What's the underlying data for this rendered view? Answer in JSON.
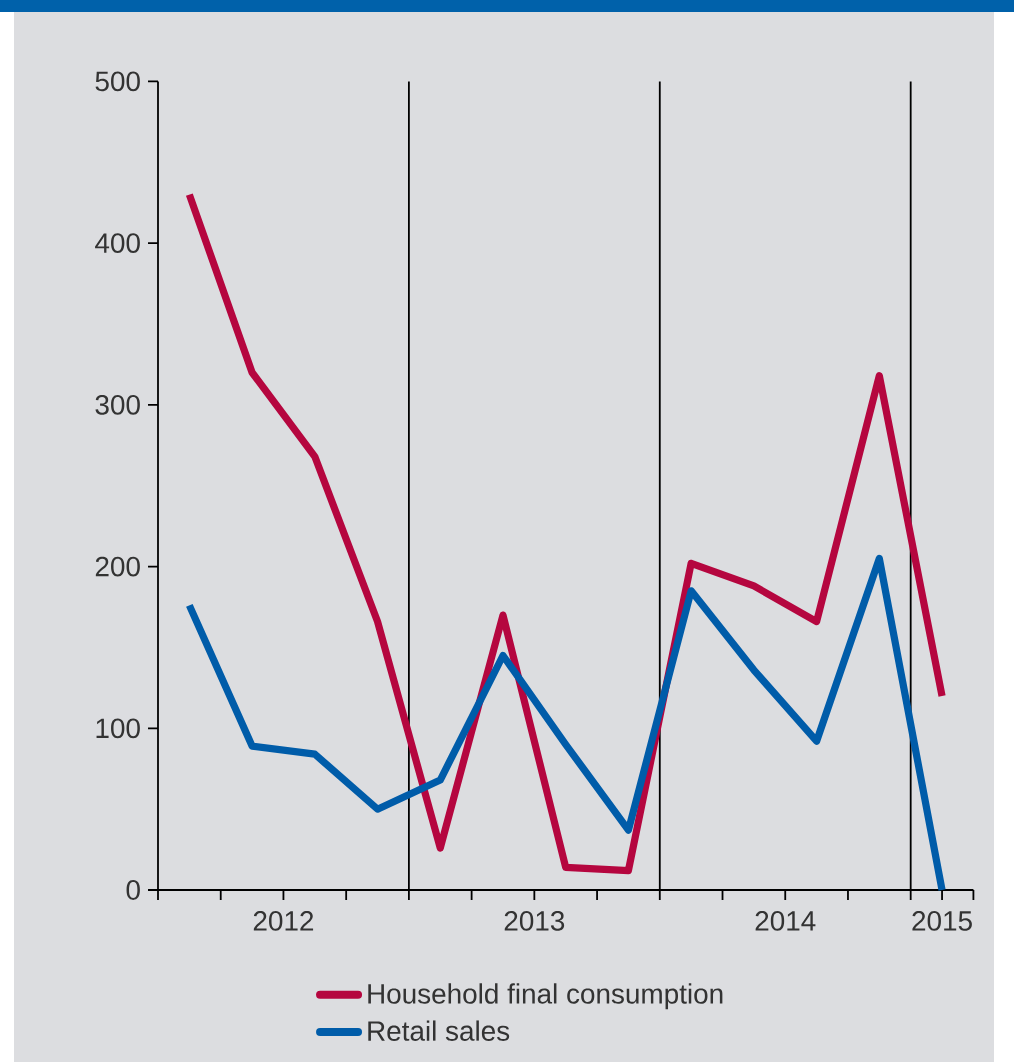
{
  "chart_data": {
    "type": "line",
    "x": [
      2012.125,
      2012.375,
      2012.625,
      2012.875,
      2013.125,
      2013.375,
      2013.625,
      2013.875,
      2014.125,
      2014.375,
      2014.625,
      2014.875,
      2015.125
    ],
    "xlim": [
      2012,
      2015.25
    ],
    "xticks": [
      {
        "value": 2012,
        "label": null
      },
      {
        "value": 2012.25,
        "label": null
      },
      {
        "value": 2012.5,
        "label": "2012"
      },
      {
        "value": 2012.75,
        "label": null
      },
      {
        "value": 2013,
        "label": null
      },
      {
        "value": 2013.25,
        "label": null
      },
      {
        "value": 2013.5,
        "label": "2013"
      },
      {
        "value": 2013.75,
        "label": null
      },
      {
        "value": 2014,
        "label": null
      },
      {
        "value": 2014.25,
        "label": null
      },
      {
        "value": 2014.5,
        "label": "2014"
      },
      {
        "value": 2014.75,
        "label": null
      },
      {
        "value": 2015,
        "label": null
      },
      {
        "value": 2015.125,
        "label": "2015"
      },
      {
        "value": 2015.25,
        "label": null
      }
    ],
    "ylim": [
      0,
      500
    ],
    "yticks": [
      0,
      100,
      200,
      300,
      400,
      500
    ],
    "series": [
      {
        "name": "Household final consumption",
        "color": "#b5063f",
        "values": [
          430,
          320,
          268,
          166,
          26,
          170,
          14,
          12,
          202,
          188,
          166,
          318,
          120
        ]
      },
      {
        "name": "Retail sales",
        "color": "#005ca9",
        "values": [
          176,
          89,
          84,
          50,
          68,
          145,
          90,
          37,
          185,
          136,
          92,
          205,
          0
        ]
      }
    ],
    "ref_lines": [
      {
        "axis": "x",
        "value": 2013,
        "color": "#000000"
      },
      {
        "axis": "x",
        "value": 2014,
        "color": "#000000"
      },
      {
        "axis": "x",
        "value": 2015,
        "color": "#000000"
      }
    ],
    "legend": "bottom",
    "grid": false,
    "marker": "none",
    "line_style": "solid"
  }
}
